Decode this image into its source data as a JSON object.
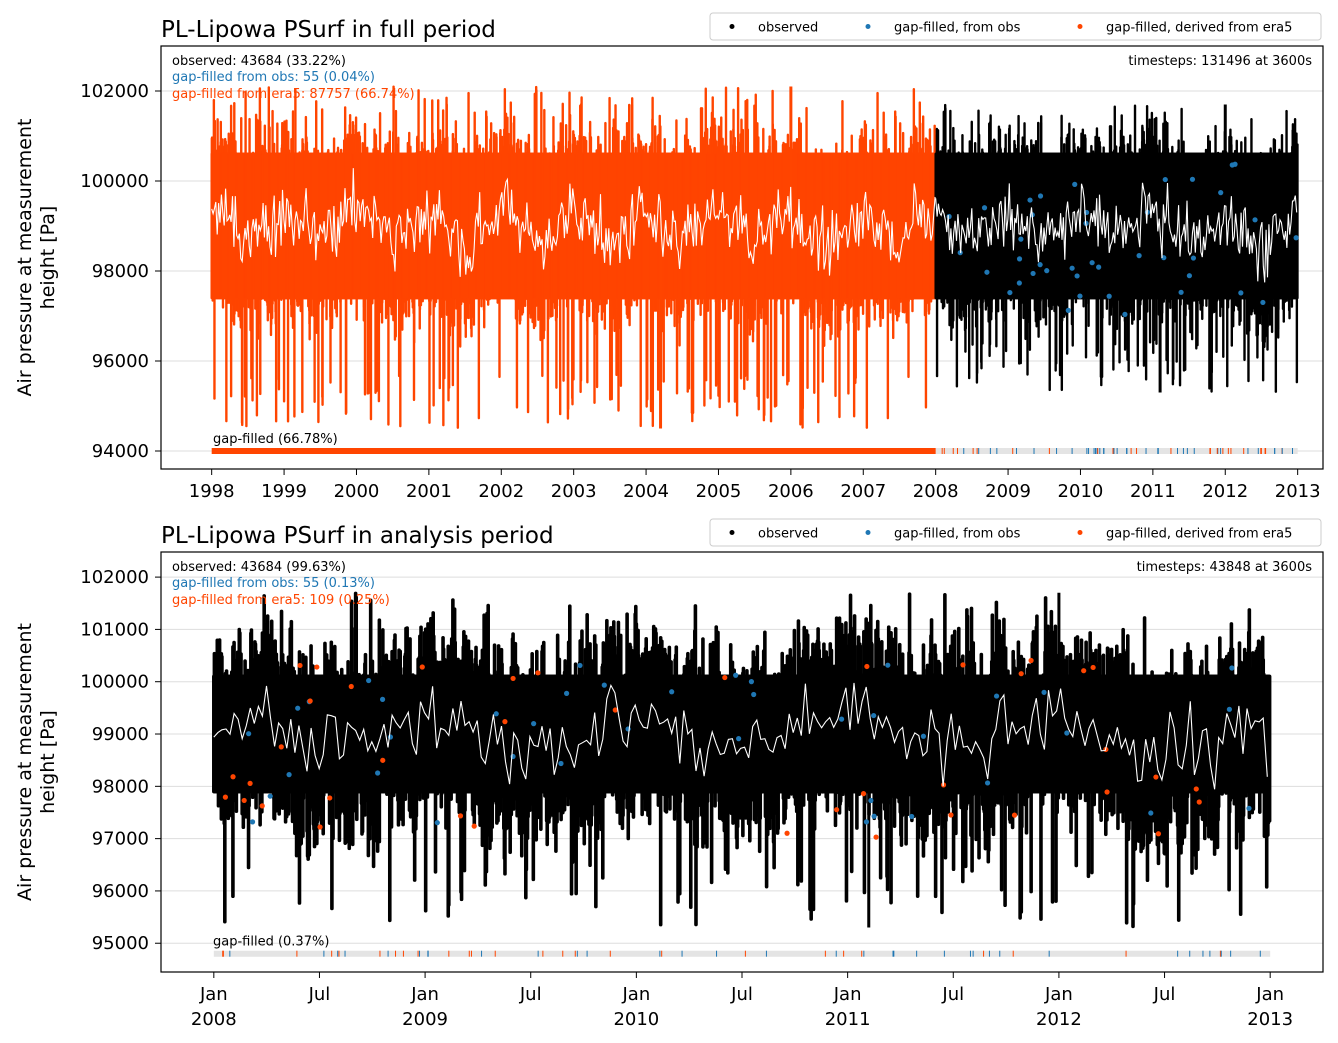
{
  "chart_data": [
    {
      "type": "scatter",
      "title": "PL-Lipowa PSurf in full period",
      "ylabel": "Air pressure at measurement height [Pa]",
      "ylabel_lines": [
        "Air pressure at measurement",
        "height [Pa]"
      ],
      "xlim": [
        1997.3,
        2013.35
      ],
      "ylim": [
        93600,
        103000
      ],
      "yticks": [
        94000,
        96000,
        98000,
        100000,
        102000
      ],
      "xticks": [
        {
          "value": 1998,
          "label": "1998"
        },
        {
          "value": 1999,
          "label": "1999"
        },
        {
          "value": 2000,
          "label": "2000"
        },
        {
          "value": 2001,
          "label": "2001"
        },
        {
          "value": 2002,
          "label": "2002"
        },
        {
          "value": 2003,
          "label": "2003"
        },
        {
          "value": 2004,
          "label": "2004"
        },
        {
          "value": 2005,
          "label": "2005"
        },
        {
          "value": 2006,
          "label": "2006"
        },
        {
          "value": 2007,
          "label": "2007"
        },
        {
          "value": 2008,
          "label": "2008"
        },
        {
          "value": 2009,
          "label": "2009"
        },
        {
          "value": 2010,
          "label": "2010"
        },
        {
          "value": 2011,
          "label": "2011"
        },
        {
          "value": 2012,
          "label": "2012"
        },
        {
          "value": 2013,
          "label": "2013"
        }
      ],
      "grid": "horizontal",
      "legend_position": "top-right, above axes",
      "legend": [
        {
          "label": "observed",
          "color": "#000000"
        },
        {
          "label": "gap-filled, from obs",
          "color": "#1f77b4"
        },
        {
          "label": "gap-filled, derived from era5",
          "color": "#ff4500"
        }
      ],
      "annotations": {
        "observed": "observed: 43684 (33.22%)",
        "gapfilled_obs": "gap-filled from obs: 55 (0.04%)",
        "gapfilled_era5": "gap-filled from era5: 87757 (66.74%)",
        "timesteps": "timesteps: 131496 at 3600s",
        "gapfilled_total": "gap-filled (66.78%)"
      },
      "gap_bar_y": 94000,
      "series": [
        {
          "name": "gap-filled, derived from era5",
          "color": "#ff4500",
          "x_range": [
            1998.0,
            2008.0
          ],
          "mean": 99000,
          "low": 94500,
          "high": 102100,
          "typical_range": [
            97000,
            101000
          ]
        },
        {
          "name": "observed",
          "color": "#000000",
          "x_range": [
            2008.0,
            2013.0
          ],
          "mean": 99000,
          "low": 95300,
          "high": 101700,
          "typical_range": [
            97000,
            101000
          ]
        },
        {
          "name": "gap-filled, from obs",
          "color": "#1f77b4",
          "count": 55,
          "x_range": [
            2008.0,
            2013.0
          ]
        }
      ]
    },
    {
      "type": "scatter",
      "title": "PL-Lipowa PSurf in analysis period",
      "ylabel": "Air pressure at measurement height [Pa]",
      "ylabel_lines": [
        "Air pressure at measurement",
        "height [Pa]"
      ],
      "xlim": [
        2007.75,
        2013.25
      ],
      "ylim": [
        94450,
        102480
      ],
      "yticks": [
        95000,
        96000,
        97000,
        98000,
        99000,
        100000,
        101000,
        102000
      ],
      "xticks": [
        {
          "value": 2008.0,
          "label": "Jan",
          "label2": "2008"
        },
        {
          "value": 2008.5,
          "label": "Jul"
        },
        {
          "value": 2009.0,
          "label": "Jan",
          "label2": "2009"
        },
        {
          "value": 2009.5,
          "label": "Jul"
        },
        {
          "value": 2010.0,
          "label": "Jan",
          "label2": "2010"
        },
        {
          "value": 2010.5,
          "label": "Jul"
        },
        {
          "value": 2011.0,
          "label": "Jan",
          "label2": "2011"
        },
        {
          "value": 2011.5,
          "label": "Jul"
        },
        {
          "value": 2012.0,
          "label": "Jan",
          "label2": "2012"
        },
        {
          "value": 2012.5,
          "label": "Jul"
        },
        {
          "value": 2013.0,
          "label": "Jan",
          "label2": "2013"
        }
      ],
      "grid": "horizontal",
      "legend_position": "top-right, above axes",
      "legend": [
        {
          "label": "observed",
          "color": "#000000"
        },
        {
          "label": "gap-filled, from obs",
          "color": "#1f77b4"
        },
        {
          "label": "gap-filled, derived from era5",
          "color": "#ff4500"
        }
      ],
      "annotations": {
        "observed": "observed: 43684 (99.63%)",
        "gapfilled_obs": "gap-filled from obs: 55 (0.13%)",
        "gapfilled_era5": "gap-filled from era5: 109 (0.25%)",
        "timesteps": "timesteps: 43848 at 3600s",
        "gapfilled_total": "gap-filled (0.37%)"
      },
      "gap_bar_y": 94800,
      "series": [
        {
          "name": "observed",
          "color": "#000000",
          "x_range": [
            2008.0,
            2013.0
          ],
          "mean": 99000,
          "low": 95300,
          "high": 101700,
          "typical_range": [
            97500,
            100500
          ]
        },
        {
          "name": "gap-filled, from obs",
          "color": "#1f77b4",
          "count": 55,
          "x_range": [
            2008.0,
            2013.0
          ]
        },
        {
          "name": "gap-filled, derived from era5",
          "color": "#ff4500",
          "count": 109,
          "x_range": [
            2008.0,
            2013.0
          ]
        }
      ]
    }
  ]
}
